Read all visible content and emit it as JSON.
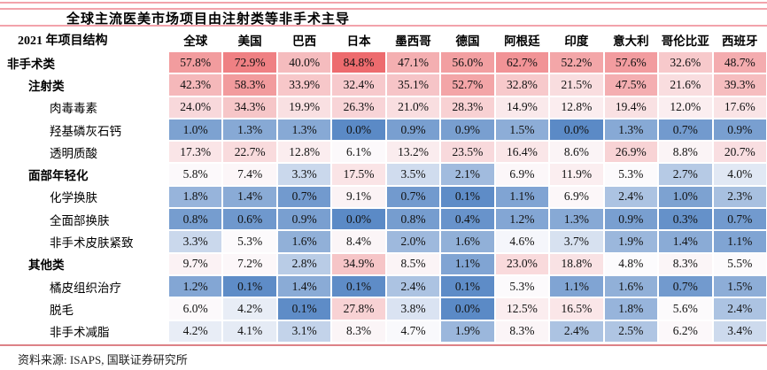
{
  "title": "全球主流医美市场项目由注射类等非手术主导",
  "source_note": "资料来源: ISAPS, 国联证券研究所",
  "accent": {
    "pink_rule": "#F2A3AB",
    "salmon_rule": "#DD8287"
  },
  "chart_data": {
    "type": "heatmap",
    "title": "全球主流医美市场项目由注射类等非手术主导",
    "row_header": "2021 年项目结构",
    "columns": [
      "全球",
      "美国",
      "巴西",
      "日本",
      "墨西哥",
      "德国",
      "阿根廷",
      "印度",
      "意大利",
      "哥伦比亚",
      "西班牙"
    ],
    "rows": [
      {
        "label": "非手术类",
        "indent": 0,
        "values": [
          57.8,
          72.9,
          40.0,
          84.8,
          47.1,
          56.0,
          62.7,
          52.2,
          57.6,
          32.6,
          48.7
        ]
      },
      {
        "label": "注射类",
        "indent": 1,
        "values": [
          42.3,
          58.3,
          33.9,
          32.4,
          35.1,
          52.7,
          32.8,
          21.5,
          47.5,
          21.6,
          39.3
        ]
      },
      {
        "label": "肉毒毒素",
        "indent": 2,
        "values": [
          24.0,
          34.3,
          19.9,
          26.3,
          21.0,
          28.3,
          14.9,
          12.8,
          19.4,
          12.0,
          17.6
        ]
      },
      {
        "label": "羟基磷灰石钙",
        "indent": 2,
        "values": [
          1.0,
          1.3,
          1.3,
          0.0,
          0.9,
          0.9,
          1.5,
          0.0,
          1.3,
          0.7,
          0.9
        ]
      },
      {
        "label": "透明质酸",
        "indent": 2,
        "values": [
          17.3,
          22.7,
          12.8,
          6.1,
          13.2,
          23.5,
          16.4,
          8.6,
          26.9,
          8.8,
          20.7
        ]
      },
      {
        "label": "面部年轻化",
        "indent": 1,
        "values": [
          5.8,
          7.4,
          3.3,
          17.5,
          3.5,
          2.1,
          6.9,
          11.9,
          5.3,
          2.7,
          4.0
        ]
      },
      {
        "label": "化学换肤",
        "indent": 2,
        "values": [
          1.8,
          1.4,
          0.7,
          9.1,
          0.7,
          0.1,
          1.1,
          6.9,
          2.4,
          1.0,
          2.3
        ]
      },
      {
        "label": "全面部换肤",
        "indent": 2,
        "values": [
          0.8,
          0.6,
          0.9,
          0.0,
          0.8,
          0.4,
          1.2,
          1.3,
          0.9,
          0.3,
          0.7
        ]
      },
      {
        "label": "非手术皮肤紧致",
        "indent": 2,
        "values": [
          3.3,
          5.3,
          1.6,
          8.4,
          2.0,
          1.6,
          4.6,
          3.7,
          1.9,
          1.4,
          1.1
        ]
      },
      {
        "label": "其他类",
        "indent": 1,
        "values": [
          9.7,
          7.2,
          2.8,
          34.9,
          8.5,
          1.1,
          23.0,
          18.8,
          4.8,
          8.3,
          5.5
        ]
      },
      {
        "label": "橘皮组织治疗",
        "indent": 2,
        "values": [
          1.2,
          0.1,
          1.4,
          0.1,
          2.4,
          0.1,
          5.3,
          1.1,
          1.6,
          0.7,
          1.5
        ]
      },
      {
        "label": "脱毛",
        "indent": 2,
        "values": [
          6.0,
          4.2,
          0.1,
          27.8,
          3.8,
          0.0,
          12.5,
          16.5,
          1.8,
          5.6,
          2.4
        ]
      },
      {
        "label": "非手术减脂",
        "indent": 2,
        "values": [
          4.2,
          4.1,
          3.1,
          8.3,
          4.7,
          1.9,
          8.3,
          2.4,
          2.5,
          6.2,
          3.4
        ]
      }
    ],
    "value_suffix": "%",
    "color_scale": {
      "min_color": "#5B8AC6",
      "mid_color": "#FCFBFD",
      "max_color": "#ED6B6E",
      "midpoint": "median"
    },
    "legend_position": "none",
    "grid": false
  }
}
